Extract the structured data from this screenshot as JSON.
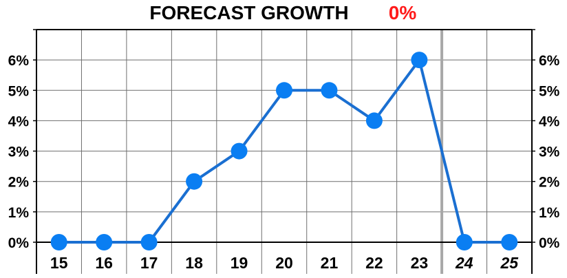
{
  "chart_data": {
    "type": "line",
    "title": "FORECAST GROWTH",
    "title_value": "0%",
    "title_value_color": "#ff1a1a",
    "categories": [
      "15",
      "16",
      "17",
      "18",
      "19",
      "20",
      "21",
      "22",
      "23",
      "24",
      "25"
    ],
    "forecast_categories": [
      "24",
      "25"
    ],
    "series": [
      {
        "values": [
          0,
          0,
          0,
          2,
          3,
          5,
          5,
          4,
          6,
          0,
          0
        ],
        "line_color": "#1a6fd1",
        "marker_color": "#0a7ef2"
      }
    ],
    "y_ticks": [
      "0%",
      "1%",
      "2%",
      "3%",
      "4%",
      "5%",
      "6%"
    ],
    "y_tick_values": [
      0,
      1,
      2,
      3,
      4,
      5,
      6
    ],
    "ylim": [
      0,
      7
    ],
    "y_axis_sides": "left-and-right",
    "grid": true,
    "xlabel": "",
    "ylabel": ""
  }
}
